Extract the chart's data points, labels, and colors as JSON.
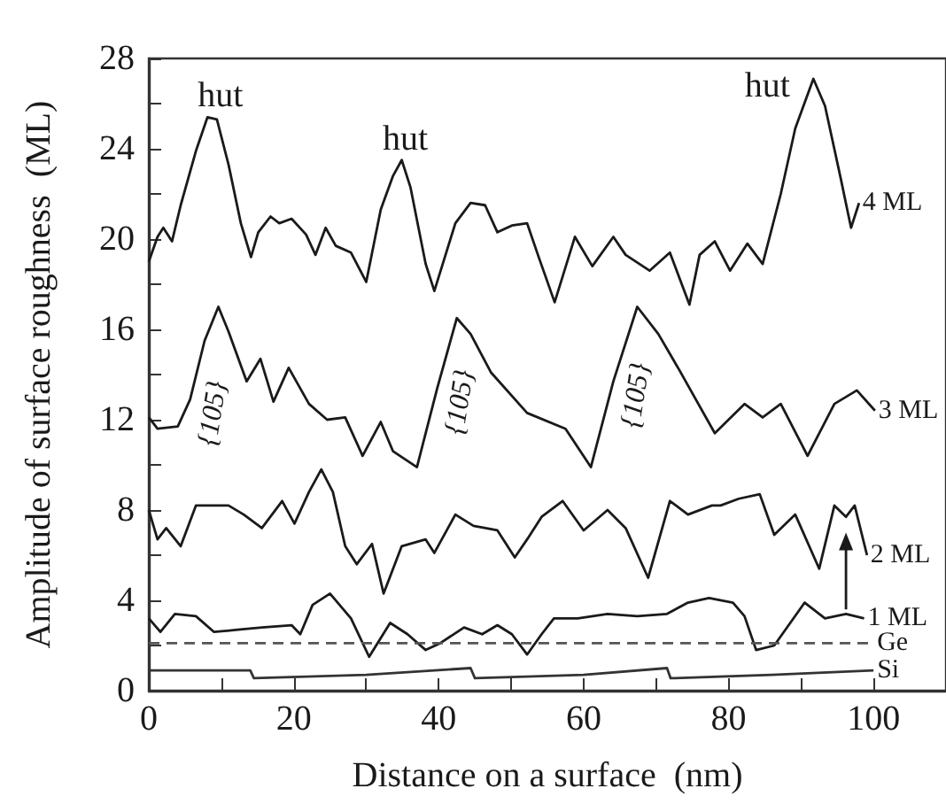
{
  "chart_data": {
    "type": "line",
    "xlabel": "Distance on a surface  (nm)",
    "ylabel": "Amplitude of surface roughness  (ML)",
    "xlim": [
      0,
      110
    ],
    "xticks": [
      0,
      {
        "value": 10,
        "label": null
      },
      20,
      {
        "value": 30,
        "label": null
      },
      40,
      {
        "value": 50,
        "label": null
      },
      60,
      {
        "value": 70,
        "label": null
      },
      80,
      {
        "value": 90,
        "label": null
      },
      100
    ],
    "ylim": [
      0,
      28
    ],
    "yticks": [
      0,
      {
        "value": 2,
        "label": null
      },
      4,
      {
        "value": 6,
        "label": null
      },
      8,
      {
        "value": 10,
        "label": null
      },
      12,
      {
        "value": 14,
        "label": null
      },
      16,
      {
        "value": 18,
        "label": null
      },
      20,
      {
        "value": 22,
        "label": null
      },
      24,
      {
        "value": 26,
        "label": null
      },
      28
    ],
    "grid": false,
    "legend": "right",
    "marker": "none",
    "line_style": "solid",
    "series": [
      {
        "name": "4 ML",
        "color": "#1a1a1a",
        "x": [
          0,
          1.2,
          2,
          3.2,
          4.4,
          6.5,
          8.1,
          9.4,
          11,
          12.7,
          14.1,
          15.1,
          16.8,
          18,
          19.7,
          21.7,
          23,
          24.4,
          25.8,
          27.9,
          30,
          32,
          33.7,
          34.9,
          36.1,
          38.2,
          39.4,
          42.3,
          44.4,
          46.4,
          48.1,
          50.1,
          52.2,
          53.8,
          56,
          58.8,
          61.2,
          64.1,
          65.8,
          69.1,
          71.9,
          74.6,
          76,
          78.1,
          80.2,
          82.6,
          84.7,
          87.2,
          89.2,
          91.7,
          93.3,
          95.4,
          96.9,
          98
        ],
        "values": [
          19,
          20.1,
          20.5,
          19.9,
          21.5,
          23.9,
          25.4,
          25.3,
          23.3,
          20.7,
          19.2,
          20.3,
          21,
          20.7,
          20.9,
          20.2,
          19.3,
          20.5,
          19.7,
          19.4,
          18.1,
          21.3,
          22.8,
          23.5,
          22.3,
          18.9,
          17.7,
          20.7,
          21.6,
          21.5,
          20.3,
          20.6,
          20.7,
          19.2,
          17.2,
          20.1,
          18.8,
          20.1,
          19.3,
          18.6,
          19.4,
          17.1,
          19.3,
          19.9,
          18.6,
          19.8,
          18.9,
          22,
          24.9,
          27.1,
          25.9,
          22.8,
          20.5,
          21.6
        ]
      },
      {
        "name": "3 ML",
        "color": "#1a1a1a",
        "x": [
          0,
          1.2,
          4,
          5.7,
          7.7,
          9.6,
          11,
          13.5,
          15.4,
          17.2,
          19.3,
          22.1,
          24.6,
          27.1,
          29.5,
          32,
          33.7,
          37,
          39.8,
          42.5,
          44.4,
          47.2,
          52.2,
          57.5,
          61,
          64.1,
          67.4,
          70.3,
          73.2,
          78.1,
          82.2,
          84.7,
          87.2,
          90.9,
          94.6,
          97.7,
          100.2
        ],
        "values": [
          12.1,
          11.6,
          11.7,
          12.9,
          15.5,
          17,
          15.9,
          13.7,
          14.7,
          12.8,
          14.3,
          12.7,
          12,
          12.1,
          10.4,
          11.9,
          10.6,
          9.9,
          13.4,
          16.5,
          15.8,
          14.1,
          12.3,
          11.6,
          9.9,
          13.7,
          17,
          15.8,
          14.2,
          11.4,
          12.7,
          12.1,
          12.7,
          10.4,
          12.7,
          13.3,
          12.4
        ]
      },
      {
        "name": "2 ML",
        "color": "#1a1a1a",
        "x": [
          0,
          1.2,
          2.4,
          4.4,
          6.5,
          8.6,
          11,
          13.1,
          15.6,
          18.4,
          20.1,
          22.1,
          23.8,
          25.4,
          27.1,
          28.7,
          30.8,
          32.4,
          34.9,
          38.2,
          39.4,
          42.3,
          44.8,
          48.1,
          50.5,
          52.2,
          54.2,
          57.1,
          60,
          63.3,
          65.8,
          68.9,
          71.9,
          74.4,
          77.7,
          78.9,
          81.4,
          84.3,
          86.3,
          89.2,
          92.5,
          94.6,
          96.2,
          97.4,
          99.1
        ],
        "values": [
          8,
          6.7,
          7.2,
          6.4,
          8.2,
          8.2,
          8.2,
          7.8,
          7.2,
          8.4,
          7.4,
          8.8,
          9.8,
          8.8,
          6.4,
          5.6,
          6.5,
          4.3,
          6.4,
          6.7,
          6.1,
          7.8,
          7.3,
          7.1,
          5.9,
          6.7,
          7.7,
          8.4,
          7.1,
          8,
          7.2,
          5,
          8.4,
          7.8,
          8.2,
          8.2,
          8.5,
          8.7,
          6.9,
          7.8,
          5.4,
          8.2,
          7.7,
          8.2,
          6
        ]
      },
      {
        "name": "1 ML",
        "color": "#1a1a1a",
        "x": [
          0,
          1.6,
          3.6,
          6.5,
          9,
          12.3,
          15.6,
          19.7,
          20.9,
          22.6,
          25,
          27.9,
          30.4,
          33.3,
          35.7,
          38.2,
          40.2,
          43.5,
          46,
          48.1,
          50.1,
          52.2,
          54.2,
          55.9,
          59.2,
          63.3,
          67.4,
          71.5,
          74.4,
          77.3,
          80.6,
          82.2,
          83.8,
          86.3,
          90.5,
          93.3,
          96.2,
          98.7
        ],
        "values": [
          3.2,
          2.6,
          3.4,
          3.3,
          2.6,
          2.7,
          2.8,
          2.9,
          2.5,
          3.8,
          4.3,
          3.2,
          1.5,
          3,
          2.5,
          1.8,
          2.1,
          2.8,
          2.5,
          2.9,
          2.5,
          1.6,
          2.5,
          3.2,
          3.2,
          3.4,
          3.3,
          3.4,
          3.9,
          4.1,
          3.9,
          3.3,
          1.8,
          2,
          3.9,
          3.2,
          3.4,
          3.2
        ]
      },
      {
        "name": "Ge",
        "color": "#555555",
        "line_style": "dashed",
        "x": [
          0,
          100
        ],
        "values": [
          2.1,
          2.1
        ]
      },
      {
        "name": "Si",
        "color": "#333333",
        "x": [
          0,
          14,
          14.5,
          30,
          44.4,
          45,
          60,
          71.5,
          72,
          86,
          100
        ],
        "values": [
          0.9,
          0.9,
          0.55,
          0.7,
          1,
          0.55,
          0.7,
          1,
          0.55,
          0.7,
          0.9
        ]
      }
    ],
    "annotations": [
      {
        "text": "hut",
        "x": 9.4,
        "y": 25.4
      },
      {
        "text": "hut",
        "x": 34.9,
        "y": 23.5
      },
      {
        "text": "hut",
        "x": 91.7,
        "y": 27.1
      },
      {
        "text": "{105}",
        "x": 5.7,
        "y": 12.9
      },
      {
        "text": "{105}",
        "x": 39.8,
        "y": 13.4
      },
      {
        "text": "{105}",
        "x": 64.1,
        "y": 13.7
      }
    ]
  }
}
